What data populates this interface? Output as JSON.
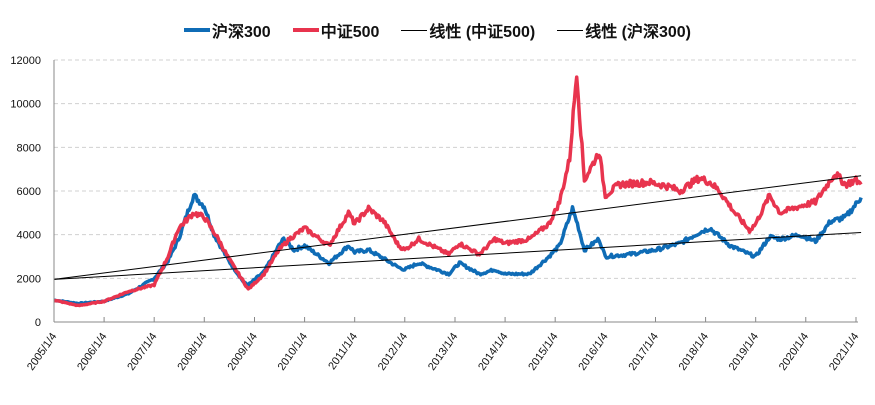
{
  "chart_data": {
    "type": "line",
    "title": "",
    "xlabel": "",
    "ylabel": "",
    "ylim": [
      0,
      12000
    ],
    "yticks": [
      0,
      2000,
      4000,
      6000,
      8000,
      10000,
      12000
    ],
    "xticks": [
      "2005/1/4",
      "2006/1/4",
      "2007/1/4",
      "2008/1/4",
      "2009/1/4",
      "2010/1/4",
      "2011/1/4",
      "2012/1/4",
      "2013/1/4",
      "2014/1/4",
      "2015/1/4",
      "2016/1/4",
      "2017/1/4",
      "2018/1/4",
      "2019/1/4",
      "2020/1/4",
      "2021/1/4"
    ],
    "grid": "horizontal dashed",
    "legend_position": "top",
    "series": [
      {
        "name": "沪深300",
        "color": "#0f6cb6",
        "width": 3.5,
        "points": [
          [
            "2005-01-04",
            1000
          ],
          [
            "2005-07-01",
            850
          ],
          [
            "2006-01-04",
            950
          ],
          [
            "2006-07-01",
            1300
          ],
          [
            "2007-01-04",
            2000
          ],
          [
            "2007-04-15",
            2800
          ],
          [
            "2007-07-01",
            3800
          ],
          [
            "2007-10-01",
            5500
          ],
          [
            "2007-10-20",
            5800
          ],
          [
            "2008-01-04",
            5300
          ],
          [
            "2008-03-15",
            4000
          ],
          [
            "2008-07-01",
            2800
          ],
          [
            "2008-10-20",
            1800
          ],
          [
            "2008-11-20",
            1700
          ],
          [
            "2009-03-15",
            2300
          ],
          [
            "2009-07-01",
            3500
          ],
          [
            "2009-08-05",
            3800
          ],
          [
            "2009-10-20",
            3300
          ],
          [
            "2010-01-04",
            3500
          ],
          [
            "2010-07-01",
            2700
          ],
          [
            "2010-11-20",
            3500
          ],
          [
            "2011-01-04",
            3200
          ],
          [
            "2011-04-15",
            3300
          ],
          [
            "2011-08-05",
            2900
          ],
          [
            "2011-11-20",
            2500
          ],
          [
            "2012-01-04",
            2400
          ],
          [
            "2012-04-15",
            2700
          ],
          [
            "2012-11-20",
            2200
          ],
          [
            "2013-02-05",
            2700
          ],
          [
            "2013-07-01",
            2200
          ],
          [
            "2013-10-20",
            2400
          ],
          [
            "2014-01-04",
            2200
          ],
          [
            "2014-07-01",
            2200
          ],
          [
            "2014-11-20",
            3000
          ],
          [
            "2015-02-05",
            3500
          ],
          [
            "2015-05-10",
            5200
          ],
          [
            "2015-06-15",
            4500
          ],
          [
            "2015-08-05",
            3300
          ],
          [
            "2015-11-20",
            3800
          ],
          [
            "2016-01-04",
            3000
          ],
          [
            "2016-07-01",
            3100
          ],
          [
            "2017-01-04",
            3300
          ],
          [
            "2017-07-01",
            3600
          ],
          [
            "2017-11-20",
            4100
          ],
          [
            "2018-02-05",
            4300
          ],
          [
            "2018-07-01",
            3500
          ],
          [
            "2018-11-20",
            3100
          ],
          [
            "2019-01-04",
            3000
          ],
          [
            "2019-04-15",
            3900
          ],
          [
            "2019-07-01",
            3800
          ],
          [
            "2019-11-20",
            4000
          ],
          [
            "2020-03-15",
            3700
          ],
          [
            "2020-07-01",
            4600
          ],
          [
            "2020-10-20",
            4800
          ],
          [
            "2021-01-04",
            5400
          ],
          [
            "2021-02-10",
            5700
          ]
        ]
      },
      {
        "name": "中证500",
        "color": "#e8344e",
        "width": 3.5,
        "points": [
          [
            "2005-01-04",
            1000
          ],
          [
            "2005-07-01",
            750
          ],
          [
            "2006-01-04",
            950
          ],
          [
            "2006-07-01",
            1400
          ],
          [
            "2007-01-04",
            1700
          ],
          [
            "2007-04-15",
            3000
          ],
          [
            "2007-07-01",
            4300
          ],
          [
            "2007-10-20",
            5000
          ],
          [
            "2008-01-04",
            4800
          ],
          [
            "2008-04-15",
            3800
          ],
          [
            "2008-07-01",
            2900
          ],
          [
            "2008-11-20",
            1500
          ],
          [
            "2009-03-15",
            2200
          ],
          [
            "2009-07-01",
            3300
          ],
          [
            "2009-09-15",
            3800
          ],
          [
            "2010-01-04",
            4300
          ],
          [
            "2010-07-01",
            3500
          ],
          [
            "2010-11-20",
            5000
          ],
          [
            "2011-01-04",
            4500
          ],
          [
            "2011-04-15",
            5200
          ],
          [
            "2011-08-05",
            4600
          ],
          [
            "2011-11-20",
            3500
          ],
          [
            "2012-01-04",
            3300
          ],
          [
            "2012-04-15",
            3800
          ],
          [
            "2012-11-20",
            3100
          ],
          [
            "2013-02-05",
            3600
          ],
          [
            "2013-07-01",
            3100
          ],
          [
            "2013-10-20",
            3800
          ],
          [
            "2014-01-04",
            3600
          ],
          [
            "2014-07-01",
            3800
          ],
          [
            "2014-11-20",
            4500
          ],
          [
            "2015-02-05",
            5500
          ],
          [
            "2015-04-20",
            7500
          ],
          [
            "2015-06-10",
            11500
          ],
          [
            "2015-07-01",
            9500
          ],
          [
            "2015-08-05",
            6500
          ],
          [
            "2015-11-20",
            7800
          ],
          [
            "2016-01-04",
            5800
          ],
          [
            "2016-04-15",
            6300
          ],
          [
            "2016-11-20",
            6400
          ],
          [
            "2017-04-15",
            6200
          ],
          [
            "2017-07-01",
            6000
          ],
          [
            "2017-11-20",
            6600
          ],
          [
            "2018-02-05",
            6400
          ],
          [
            "2018-04-15",
            6000
          ],
          [
            "2018-08-05",
            5000
          ],
          [
            "2018-11-20",
            4200
          ],
          [
            "2019-01-04",
            4500
          ],
          [
            "2019-04-15",
            5800
          ],
          [
            "2019-07-01",
            5000
          ],
          [
            "2019-11-20",
            5300
          ],
          [
            "2020-03-15",
            5500
          ],
          [
            "2020-07-01",
            6500
          ],
          [
            "2020-08-05",
            6800
          ],
          [
            "2020-10-20",
            6300
          ],
          [
            "2021-01-04",
            6500
          ],
          [
            "2021-02-10",
            6300
          ]
        ]
      },
      {
        "name": "线性 (中证500)",
        "color": "#000000",
        "width": 1,
        "trendline": true,
        "points": [
          [
            "2005-01-04",
            1950
          ],
          [
            "2021-02-10",
            6700
          ]
        ]
      },
      {
        "name": "线性 (沪深300)",
        "color": "#000000",
        "width": 1,
        "trendline": true,
        "points": [
          [
            "2005-01-04",
            1950
          ],
          [
            "2021-02-10",
            4100
          ]
        ]
      }
    ]
  }
}
